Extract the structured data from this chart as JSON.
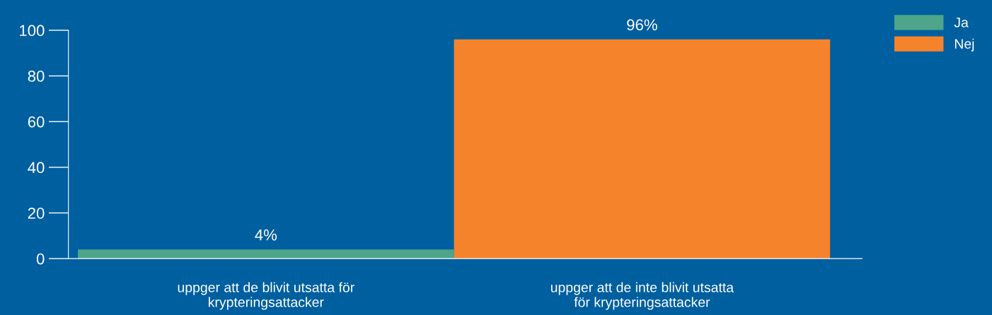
{
  "chart_data": {
    "type": "bar",
    "categories": [
      "uppger att de blivit utsatta för\nkrypteringsattacker",
      "uppger att de inte blivit utsatta\nför krypteringsattacker"
    ],
    "series": [
      {
        "name": "Ja",
        "color": "#4fa58a",
        "values": [
          4,
          null
        ],
        "value_labels": [
          "4%",
          null
        ]
      },
      {
        "name": "Nej",
        "color": "#f5832b",
        "values": [
          null,
          96
        ],
        "value_labels": [
          null,
          "96%"
        ]
      }
    ],
    "ylim": [
      0,
      100
    ],
    "yticks": [
      0,
      20,
      40,
      60,
      80,
      100
    ],
    "grid": false,
    "legend": "top right"
  }
}
